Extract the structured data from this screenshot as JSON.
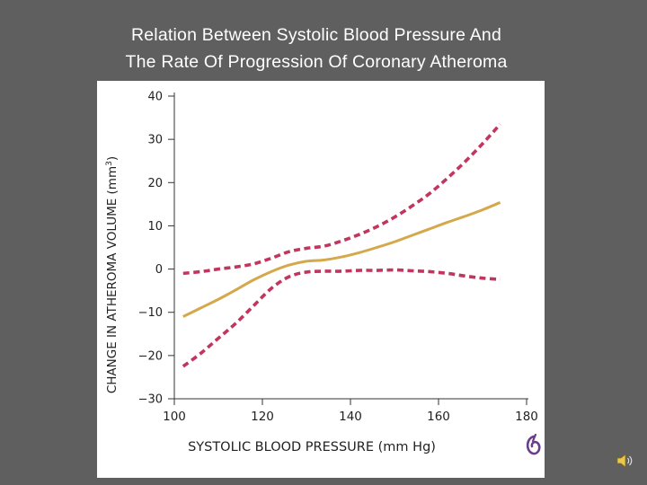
{
  "slide": {
    "title_line1": "Relation Between Systolic Blood Pressure And",
    "title_line2": "The Rate Of Progression Of Coronary Atheroma"
  },
  "colors": {
    "background": "#5f5f5f",
    "panel": "#ffffff",
    "mean_line": "#d4a84b",
    "ci_line": "#c0365e",
    "axis": "#333333"
  },
  "icons": {
    "publisher_logo": "publisher-logo-icon",
    "audio": "speaker-icon"
  },
  "chart_data": {
    "type": "line",
    "xlabel": "SYSTOLIC BLOOD PRESSURE (mm Hg)",
    "ylabel_main": "CHANGE IN ATHEROMA VOLUME (mm",
    "ylabel_sup": "3",
    "ylabel_end": ")",
    "xlim": [
      100,
      180
    ],
    "ylim": [
      -30,
      40
    ],
    "xticks": [
      100,
      120,
      140,
      160,
      180
    ],
    "yticks": [
      -30,
      -20,
      -10,
      0,
      10,
      20,
      30,
      40
    ],
    "ytick_labels": [
      "−30",
      "−20",
      "−10",
      "0",
      "10",
      "20",
      "30",
      "40"
    ],
    "grid": false,
    "legend": "none",
    "series": [
      {
        "role": "mean",
        "style": "solid",
        "x": [
          102,
          106,
          110,
          114,
          118,
          122,
          126,
          130,
          134,
          138,
          142,
          146,
          150,
          154,
          158,
          162,
          166,
          170,
          174
        ],
        "y": [
          -11,
          -9,
          -7,
          -4.8,
          -2.5,
          -0.6,
          0.9,
          1.8,
          2.1,
          2.8,
          3.8,
          5,
          6.3,
          7.8,
          9.3,
          10.8,
          12.2,
          13.7,
          15.4
        ]
      },
      {
        "role": "upper-ci",
        "style": "dashed",
        "x": [
          102,
          106,
          110,
          114,
          118,
          122,
          126,
          130,
          134,
          138,
          142,
          146,
          150,
          154,
          158,
          162,
          166,
          170,
          174
        ],
        "y": [
          -1,
          -0.6,
          0,
          0.5,
          1.2,
          2.5,
          4,
          4.8,
          5.3,
          6.5,
          8,
          9.8,
          12,
          14.6,
          17.5,
          21,
          24.8,
          29,
          33.5
        ]
      },
      {
        "role": "lower-ci",
        "style": "dashed",
        "x": [
          102,
          106,
          110,
          114,
          118,
          122,
          126,
          130,
          134,
          138,
          142,
          146,
          150,
          154,
          158,
          162,
          166,
          170,
          174
        ],
        "y": [
          -22.5,
          -19.5,
          -16,
          -12.5,
          -8.5,
          -4.5,
          -1.8,
          -0.7,
          -0.5,
          -0.5,
          -0.3,
          -0.3,
          -0.2,
          -0.4,
          -0.6,
          -1,
          -1.6,
          -2.1,
          -2.4
        ]
      }
    ]
  }
}
